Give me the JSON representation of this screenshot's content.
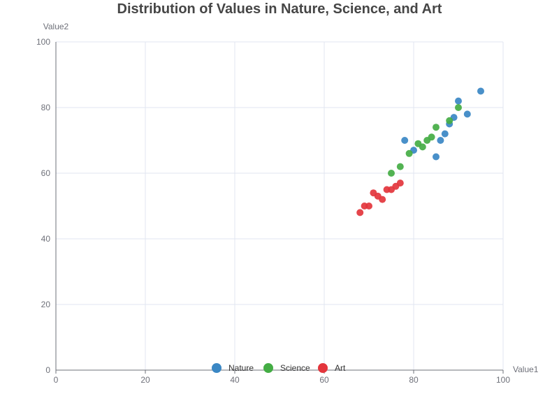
{
  "chart_data": {
    "type": "scatter",
    "title": "Distribution of Values in Nature, Science, and Art",
    "xlabel": "Value1",
    "ylabel": "Value2",
    "xlim": [
      0,
      100
    ],
    "ylim": [
      0,
      100
    ],
    "xticks": [
      0,
      20,
      40,
      60,
      80,
      100
    ],
    "yticks": [
      0,
      20,
      40,
      60,
      80,
      100
    ],
    "grid": true,
    "legend_position": "bottom-center",
    "series": [
      {
        "name": "Nature",
        "color": "#3a87c4",
        "points": [
          [
            78,
            70
          ],
          [
            80,
            67
          ],
          [
            85,
            65
          ],
          [
            86,
            70
          ],
          [
            87,
            72
          ],
          [
            88,
            75
          ],
          [
            89,
            77
          ],
          [
            90,
            82
          ],
          [
            92,
            78
          ],
          [
            95,
            85
          ]
        ]
      },
      {
        "name": "Science",
        "color": "#44ad44",
        "points": [
          [
            75,
            60
          ],
          [
            77,
            62
          ],
          [
            79,
            66
          ],
          [
            81,
            69
          ],
          [
            82,
            68
          ],
          [
            83,
            70
          ],
          [
            84,
            71
          ],
          [
            85,
            74
          ],
          [
            88,
            76
          ],
          [
            90,
            80
          ]
        ]
      },
      {
        "name": "Art",
        "color": "#e3353c",
        "points": [
          [
            68,
            48
          ],
          [
            69,
            50
          ],
          [
            70,
            50
          ],
          [
            71,
            54
          ],
          [
            72,
            53
          ],
          [
            73,
            52
          ],
          [
            74,
            55
          ],
          [
            75,
            55
          ],
          [
            76,
            56
          ],
          [
            77,
            57
          ]
        ]
      }
    ]
  }
}
